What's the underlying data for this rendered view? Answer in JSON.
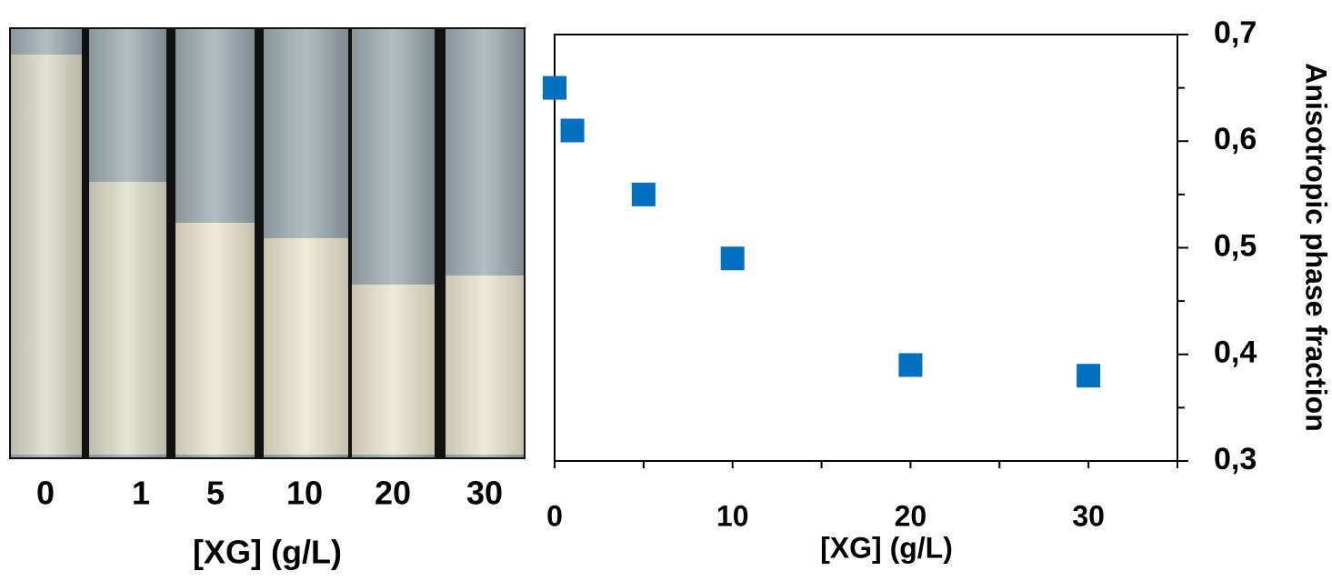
{
  "photo": {
    "labels": [
      "0",
      "1",
      "5",
      "10",
      "20",
      "30"
    ],
    "xlabel": "[XG] (g/L)"
  },
  "chart_data": {
    "type": "scatter",
    "xlabel": "[XG] (g/L)",
    "ylabel": "Anisotropic phase fraction",
    "x": [
      0,
      1,
      5,
      10,
      20,
      30
    ],
    "series": [
      {
        "color": "#0070c0",
        "values": [
          0.65,
          0.61,
          0.55,
          0.49,
          0.39,
          0.38
        ]
      }
    ],
    "xlim": [
      0,
      35
    ],
    "xticks": [
      0,
      10,
      20,
      30
    ],
    "xminorticks": [
      5,
      15,
      25,
      35
    ],
    "ylim": [
      0.3,
      0.7
    ],
    "yticks": [
      {
        "value": 0.3,
        "label": "0,3"
      },
      {
        "value": 0.4,
        "label": "0,4"
      },
      {
        "value": 0.5,
        "label": "0,5"
      },
      {
        "value": 0.6,
        "label": "0,6"
      },
      {
        "value": 0.7,
        "label": "0,7"
      }
    ],
    "yminorticks": [
      0.35,
      0.45,
      0.55,
      0.65
    ]
  }
}
